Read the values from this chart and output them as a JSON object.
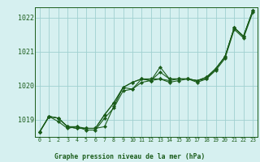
{
  "title": "Graphe pression niveau de la mer (hPa)",
  "xlabel": "Graphe pression niveau de la mer (hPa)",
  "background_color": "#d6f0f0",
  "grid_color": "#a0d0d0",
  "line_color": "#1a5c1a",
  "marker_color": "#1a5c1a",
  "ylim": [
    1018.5,
    1022.3
  ],
  "yticks": [
    1019,
    1020,
    1021,
    1022
  ],
  "xlim": [
    -0.5,
    23.5
  ],
  "xticks": [
    0,
    1,
    2,
    3,
    4,
    5,
    6,
    7,
    8,
    9,
    10,
    11,
    12,
    13,
    14,
    15,
    16,
    17,
    18,
    19,
    20,
    21,
    22,
    23
  ],
  "series": [
    [
      1018.65,
      1019.1,
      1019.05,
      1018.8,
      1018.8,
      1018.75,
      1018.75,
      1018.8,
      1019.4,
      1019.95,
      1019.9,
      1020.2,
      1020.2,
      1020.2,
      1020.15,
      1020.2,
      1020.2,
      1020.15,
      1020.2,
      1020.5,
      1020.85,
      1021.7,
      1021.45,
      1022.2
    ],
    [
      1018.65,
      1019.1,
      1019.05,
      1018.8,
      1018.75,
      1018.75,
      1018.75,
      1019.15,
      1019.5,
      1019.95,
      1020.1,
      1020.2,
      1020.15,
      1020.4,
      1020.2,
      1020.2,
      1020.2,
      1020.15,
      1020.25,
      1020.5,
      1020.85,
      1021.7,
      1021.45,
      1022.2
    ],
    [
      1018.65,
      1019.1,
      1019.05,
      1018.8,
      1018.75,
      1018.75,
      1018.75,
      1019.15,
      1019.5,
      1019.95,
      1020.1,
      1020.2,
      1020.15,
      1020.55,
      1020.2,
      1020.2,
      1020.2,
      1020.15,
      1020.25,
      1020.5,
      1020.85,
      1021.7,
      1021.45,
      1022.2
    ],
    [
      1018.65,
      1019.1,
      1018.95,
      1018.75,
      1018.8,
      1018.7,
      1018.7,
      1019.05,
      1019.35,
      1019.85,
      1019.9,
      1020.1,
      1020.15,
      1020.2,
      1020.1,
      1020.15,
      1020.2,
      1020.1,
      1020.2,
      1020.45,
      1020.8,
      1021.65,
      1021.4,
      1022.15
    ]
  ]
}
